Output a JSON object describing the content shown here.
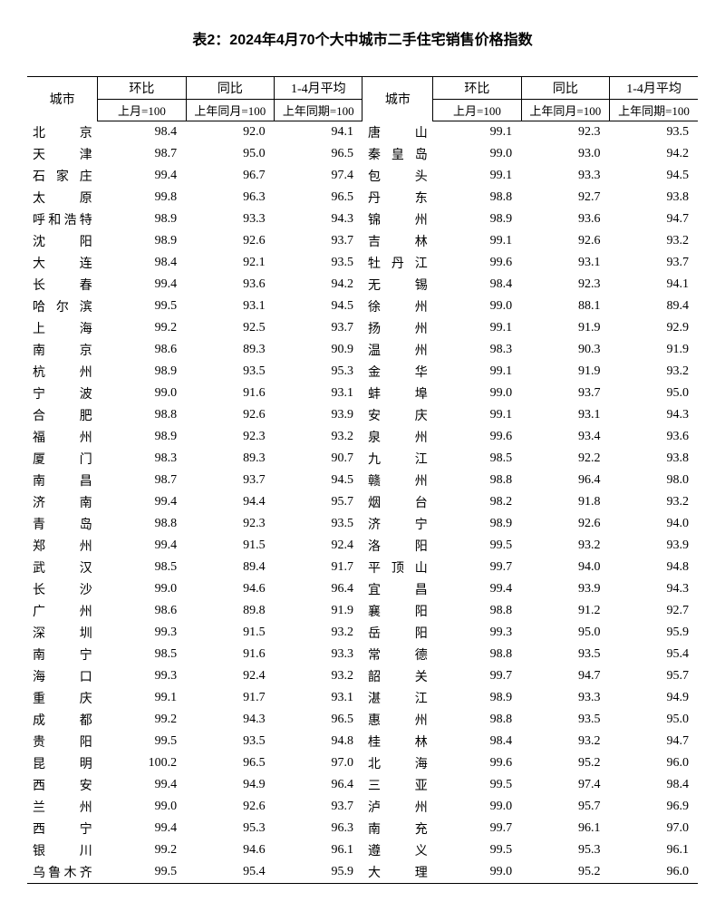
{
  "title": "表2：2024年4月70个大中城市二手住宅销售价格指数",
  "headers": {
    "city": "城市",
    "mom": "环比",
    "yoy": "同比",
    "avg": "1-4月平均",
    "mom_sub": "上月=100",
    "yoy_sub": "上年同月=100",
    "avg_sub": "上年同期=100"
  },
  "left": [
    {
      "city": "北　　京",
      "mom": "98.4",
      "yoy": "92.0",
      "avg": "94.1"
    },
    {
      "city": "天　　津",
      "mom": "98.7",
      "yoy": "95.0",
      "avg": "96.5"
    },
    {
      "city": "石 家 庄",
      "mom": "99.4",
      "yoy": "96.7",
      "avg": "97.4"
    },
    {
      "city": "太　　原",
      "mom": "99.8",
      "yoy": "96.3",
      "avg": "96.5"
    },
    {
      "city": "呼和浩特",
      "mom": "98.9",
      "yoy": "93.3",
      "avg": "94.3"
    },
    {
      "city": "沈　　阳",
      "mom": "98.9",
      "yoy": "92.6",
      "avg": "93.7"
    },
    {
      "city": "大　　连",
      "mom": "98.4",
      "yoy": "92.1",
      "avg": "93.5"
    },
    {
      "city": "长　　春",
      "mom": "99.4",
      "yoy": "93.6",
      "avg": "94.2"
    },
    {
      "city": "哈 尔 滨",
      "mom": "99.5",
      "yoy": "93.1",
      "avg": "94.5"
    },
    {
      "city": "上　　海",
      "mom": "99.2",
      "yoy": "92.5",
      "avg": "93.7"
    },
    {
      "city": "南　　京",
      "mom": "98.6",
      "yoy": "89.3",
      "avg": "90.9"
    },
    {
      "city": "杭　　州",
      "mom": "98.9",
      "yoy": "93.5",
      "avg": "95.3"
    },
    {
      "city": "宁　　波",
      "mom": "99.0",
      "yoy": "91.6",
      "avg": "93.1"
    },
    {
      "city": "合　　肥",
      "mom": "98.8",
      "yoy": "92.6",
      "avg": "93.9"
    },
    {
      "city": "福　　州",
      "mom": "98.9",
      "yoy": "92.3",
      "avg": "93.2"
    },
    {
      "city": "厦　　门",
      "mom": "98.3",
      "yoy": "89.3",
      "avg": "90.7"
    },
    {
      "city": "南　　昌",
      "mom": "98.7",
      "yoy": "93.7",
      "avg": "94.5"
    },
    {
      "city": "济　　南",
      "mom": "99.4",
      "yoy": "94.4",
      "avg": "95.7"
    },
    {
      "city": "青　　岛",
      "mom": "98.8",
      "yoy": "92.3",
      "avg": "93.5"
    },
    {
      "city": "郑　　州",
      "mom": "99.4",
      "yoy": "91.5",
      "avg": "92.4"
    },
    {
      "city": "武　　汉",
      "mom": "98.5",
      "yoy": "89.4",
      "avg": "91.7"
    },
    {
      "city": "长　　沙",
      "mom": "99.0",
      "yoy": "94.6",
      "avg": "96.4"
    },
    {
      "city": "广　　州",
      "mom": "98.6",
      "yoy": "89.8",
      "avg": "91.9"
    },
    {
      "city": "深　　圳",
      "mom": "99.3",
      "yoy": "91.5",
      "avg": "93.2"
    },
    {
      "city": "南　　宁",
      "mom": "98.5",
      "yoy": "91.6",
      "avg": "93.3"
    },
    {
      "city": "海　　口",
      "mom": "99.3",
      "yoy": "92.4",
      "avg": "93.2"
    },
    {
      "city": "重　　庆",
      "mom": "99.1",
      "yoy": "91.7",
      "avg": "93.1"
    },
    {
      "city": "成　　都",
      "mom": "99.2",
      "yoy": "94.3",
      "avg": "96.5"
    },
    {
      "city": "贵　　阳",
      "mom": "99.5",
      "yoy": "93.5",
      "avg": "94.8"
    },
    {
      "city": "昆　　明",
      "mom": "100.2",
      "yoy": "96.5",
      "avg": "97.0"
    },
    {
      "city": "西　　安",
      "mom": "99.4",
      "yoy": "94.9",
      "avg": "96.4"
    },
    {
      "city": "兰　　州",
      "mom": "99.0",
      "yoy": "92.6",
      "avg": "93.7"
    },
    {
      "city": "西　　宁",
      "mom": "99.4",
      "yoy": "95.3",
      "avg": "96.3"
    },
    {
      "city": "银　　川",
      "mom": "99.2",
      "yoy": "94.6",
      "avg": "96.1"
    },
    {
      "city": "乌鲁木齐",
      "mom": "99.5",
      "yoy": "95.4",
      "avg": "95.9"
    }
  ],
  "right": [
    {
      "city": "唐　　山",
      "mom": "99.1",
      "yoy": "92.3",
      "avg": "93.5"
    },
    {
      "city": "秦 皇 岛",
      "mom": "99.0",
      "yoy": "93.0",
      "avg": "94.2"
    },
    {
      "city": "包　　头",
      "mom": "99.1",
      "yoy": "93.3",
      "avg": "94.5"
    },
    {
      "city": "丹　　东",
      "mom": "98.8",
      "yoy": "92.7",
      "avg": "93.8"
    },
    {
      "city": "锦　　州",
      "mom": "98.9",
      "yoy": "93.6",
      "avg": "94.7"
    },
    {
      "city": "吉　　林",
      "mom": "99.1",
      "yoy": "92.6",
      "avg": "93.2"
    },
    {
      "city": "牡 丹 江",
      "mom": "99.6",
      "yoy": "93.1",
      "avg": "93.7"
    },
    {
      "city": "无　　锡",
      "mom": "98.4",
      "yoy": "92.3",
      "avg": "94.1"
    },
    {
      "city": "徐　　州",
      "mom": "99.0",
      "yoy": "88.1",
      "avg": "89.4"
    },
    {
      "city": "扬　　州",
      "mom": "99.1",
      "yoy": "91.9",
      "avg": "92.9"
    },
    {
      "city": "温　　州",
      "mom": "98.3",
      "yoy": "90.3",
      "avg": "91.9"
    },
    {
      "city": "金　　华",
      "mom": "99.1",
      "yoy": "91.9",
      "avg": "93.2"
    },
    {
      "city": "蚌　　埠",
      "mom": "99.0",
      "yoy": "93.7",
      "avg": "95.0"
    },
    {
      "city": "安　　庆",
      "mom": "99.1",
      "yoy": "93.1",
      "avg": "94.3"
    },
    {
      "city": "泉　　州",
      "mom": "99.6",
      "yoy": "93.4",
      "avg": "93.6"
    },
    {
      "city": "九　　江",
      "mom": "98.5",
      "yoy": "92.2",
      "avg": "93.8"
    },
    {
      "city": "赣　　州",
      "mom": "98.8",
      "yoy": "96.4",
      "avg": "98.0"
    },
    {
      "city": "烟　　台",
      "mom": "98.2",
      "yoy": "91.8",
      "avg": "93.2"
    },
    {
      "city": "济　　宁",
      "mom": "98.9",
      "yoy": "92.6",
      "avg": "94.0"
    },
    {
      "city": "洛　　阳",
      "mom": "99.5",
      "yoy": "93.2",
      "avg": "93.9"
    },
    {
      "city": "平 顶 山",
      "mom": "99.7",
      "yoy": "94.0",
      "avg": "94.8"
    },
    {
      "city": "宜　　昌",
      "mom": "99.4",
      "yoy": "93.9",
      "avg": "94.3"
    },
    {
      "city": "襄　　阳",
      "mom": "98.8",
      "yoy": "91.2",
      "avg": "92.7"
    },
    {
      "city": "岳　　阳",
      "mom": "99.3",
      "yoy": "95.0",
      "avg": "95.9"
    },
    {
      "city": "常　　德",
      "mom": "98.8",
      "yoy": "93.5",
      "avg": "95.4"
    },
    {
      "city": "韶　　关",
      "mom": "99.7",
      "yoy": "94.7",
      "avg": "95.7"
    },
    {
      "city": "湛　　江",
      "mom": "98.9",
      "yoy": "93.3",
      "avg": "94.9"
    },
    {
      "city": "惠　　州",
      "mom": "98.8",
      "yoy": "93.5",
      "avg": "95.0"
    },
    {
      "city": "桂　　林",
      "mom": "98.4",
      "yoy": "93.2",
      "avg": "94.7"
    },
    {
      "city": "北　　海",
      "mom": "99.6",
      "yoy": "95.2",
      "avg": "96.0"
    },
    {
      "city": "三　　亚",
      "mom": "99.5",
      "yoy": "97.4",
      "avg": "98.4"
    },
    {
      "city": "泸　　州",
      "mom": "99.0",
      "yoy": "95.7",
      "avg": "96.9"
    },
    {
      "city": "南　　充",
      "mom": "99.7",
      "yoy": "96.1",
      "avg": "97.0"
    },
    {
      "city": "遵　　义",
      "mom": "99.5",
      "yoy": "95.3",
      "avg": "96.1"
    },
    {
      "city": "大　　理",
      "mom": "99.0",
      "yoy": "95.2",
      "avg": "96.0"
    }
  ]
}
